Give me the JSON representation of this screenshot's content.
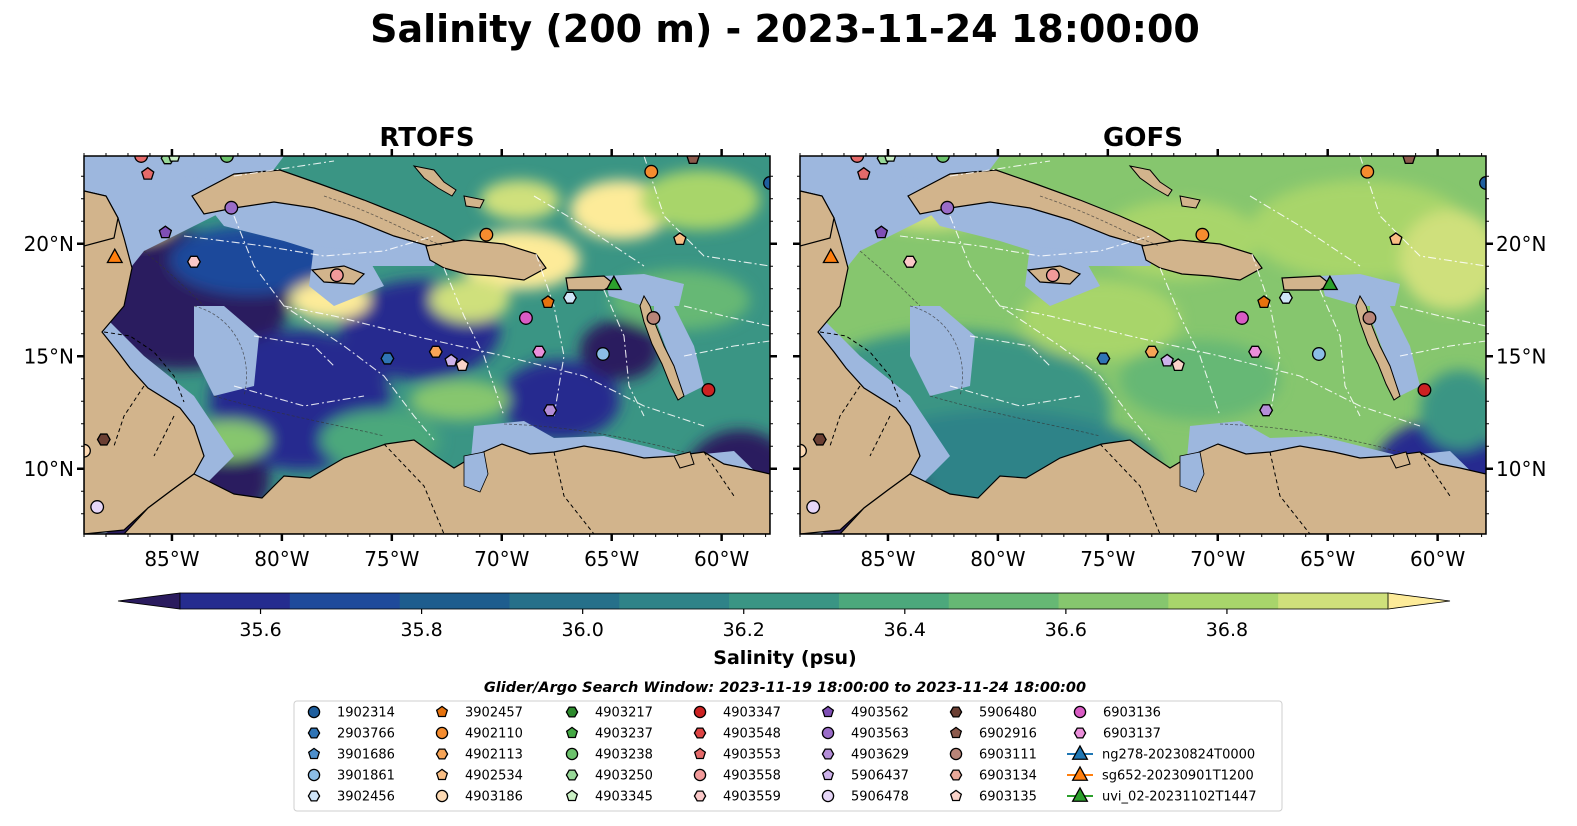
{
  "title": "Salinity (200 m) - 2023-11-24 18:00:00",
  "panels": [
    {
      "id": "rtofs",
      "title": "RTOFS"
    },
    {
      "id": "gofs",
      "title": "GOFS"
    }
  ],
  "map": {
    "lon_range": [
      -89,
      -57.8
    ],
    "lat_range": [
      7.1,
      23.9
    ],
    "lon_ticks": [
      -85,
      -80,
      -75,
      -70,
      -65,
      -60
    ],
    "lon_tick_labels": [
      "85°W",
      "80°W",
      "75°W",
      "70°W",
      "65°W",
      "60°W"
    ],
    "lat_ticks": [
      10,
      15,
      20
    ],
    "lat_tick_labels": [
      "10°N",
      "15°N",
      "20°N"
    ],
    "colors": {
      "land": "#d2b48c",
      "shelf": "#9db7de",
      "coast": "#000000",
      "border": "#000000",
      "eez": "#ffffff"
    }
  },
  "colorbar": {
    "label": "Salinity (psu)",
    "range": [
      35.5,
      37.0
    ],
    "step": 0.1,
    "extend": "both",
    "ticks": [
      35.6,
      35.8,
      36.0,
      36.2,
      36.4,
      36.6,
      36.8
    ],
    "tick_labels": [
      "35.6",
      "35.8",
      "36.0",
      "36.2",
      "36.4",
      "36.6",
      "36.8"
    ],
    "colormap": [
      "#2a1b5e",
      "#252c8f",
      "#1f4a9b",
      "#1e5d8e",
      "#26708a",
      "#2f8388",
      "#3a9584",
      "#4ca87c",
      "#66b874",
      "#86c66e",
      "#a8d56b",
      "#cfe07b",
      "#fdeb99"
    ]
  },
  "search_window": "Glider/Argo Search Window: 2023-11-19 18:00:00 to 2023-11-24 18:00:00",
  "legend": {
    "columns": [
      [
        {
          "label": "1902314",
          "marker": "circle",
          "color": "#1f5f9e"
        },
        {
          "label": "2903766",
          "marker": "hexagon",
          "color": "#2f74b5"
        },
        {
          "label": "3901686",
          "marker": "pentagon",
          "color": "#4d8fcc"
        },
        {
          "label": "3901861",
          "marker": "circle",
          "color": "#8cbde6"
        },
        {
          "label": "3902456",
          "marker": "hexagon",
          "color": "#cfe4f7"
        }
      ],
      [
        {
          "label": "3902457",
          "marker": "pentagon",
          "color": "#e6720e"
        },
        {
          "label": "4902110",
          "marker": "circle",
          "color": "#f58c2f"
        },
        {
          "label": "4902113",
          "marker": "hexagon",
          "color": "#f7a456"
        },
        {
          "label": "4902534",
          "marker": "pentagon",
          "color": "#f9be84"
        },
        {
          "label": "4903186",
          "marker": "circle",
          "color": "#fcd9b3"
        }
      ],
      [
        {
          "label": "4903217",
          "marker": "hexagon",
          "color": "#2c8a2c"
        },
        {
          "label": "4903237",
          "marker": "pentagon",
          "color": "#44a844"
        },
        {
          "label": "4903238",
          "marker": "circle",
          "color": "#6cc26c"
        },
        {
          "label": "4903250",
          "marker": "hexagon",
          "color": "#98d898"
        },
        {
          "label": "4903345",
          "marker": "pentagon",
          "color": "#caf0c4"
        }
      ],
      [
        {
          "label": "4903347",
          "marker": "circle",
          "color": "#cc2222"
        },
        {
          "label": "4903548",
          "marker": "hexagon",
          "color": "#dd4444"
        },
        {
          "label": "4903553",
          "marker": "pentagon",
          "color": "#e56a6a"
        },
        {
          "label": "4903558",
          "marker": "circle",
          "color": "#f29a9a"
        },
        {
          "label": "4903559",
          "marker": "hexagon",
          "color": "#fac8c8"
        }
      ],
      [
        {
          "label": "4903562",
          "marker": "pentagon",
          "color": "#7f4fb5"
        },
        {
          "label": "4903563",
          "marker": "circle",
          "color": "#9a6cc8"
        },
        {
          "label": "4903629",
          "marker": "hexagon",
          "color": "#b48ed8"
        },
        {
          "label": "5906437",
          "marker": "pentagon",
          "color": "#cdb2ea"
        },
        {
          "label": "5906478",
          "marker": "circle",
          "color": "#e6d6f7"
        }
      ],
      [
        {
          "label": "5906480",
          "marker": "hexagon",
          "color": "#6b3f33"
        },
        {
          "label": "6902916",
          "marker": "pentagon",
          "color": "#8c5a4c"
        },
        {
          "label": "6903111",
          "marker": "circle",
          "color": "#b98578"
        },
        {
          "label": "6903134",
          "marker": "hexagon",
          "color": "#eaa99a"
        },
        {
          "label": "6903135",
          "marker": "pentagon",
          "color": "#f9d2c8"
        }
      ],
      [
        {
          "label": "6903136",
          "marker": "circle",
          "color": "#d95bc4"
        },
        {
          "label": "6903137",
          "marker": "hexagon",
          "color": "#eb8fdb"
        },
        {
          "label": "ng278-20230824T0000",
          "marker": "triangle-line",
          "color": "#1f77b4"
        },
        {
          "label": "sg652-20230901T1200",
          "marker": "triangle-line",
          "color": "#ff7f0e"
        },
        {
          "label": "uvi_02-20231102T1447",
          "marker": "triangle-line",
          "color": "#2ca02c"
        }
      ]
    ]
  },
  "observations": [
    {
      "lon": -82.3,
      "lat": 21.6,
      "marker": "circle",
      "color": "#9a6cc8"
    },
    {
      "lon": -85.3,
      "lat": 20.5,
      "marker": "pentagon",
      "color": "#7f4fb5"
    },
    {
      "lon": -84.0,
      "lat": 19.2,
      "marker": "hexagon",
      "color": "#fac8c8"
    },
    {
      "lon": -86.1,
      "lat": 23.1,
      "marker": "pentagon",
      "color": "#e56a6a"
    },
    {
      "lon": -86.4,
      "lat": 23.9,
      "marker": "circle",
      "color": "#e56a6a"
    },
    {
      "lon": -82.5,
      "lat": 23.9,
      "marker": "circle",
      "color": "#6cc26c"
    },
    {
      "lon": -77.5,
      "lat": 18.6,
      "marker": "circle",
      "color": "#f29a9a"
    },
    {
      "lon": -75.2,
      "lat": 14.9,
      "marker": "hexagon",
      "color": "#2f74b5"
    },
    {
      "lon": -73.0,
      "lat": 15.2,
      "marker": "hexagon",
      "color": "#f7a456"
    },
    {
      "lon": -72.3,
      "lat": 14.8,
      "marker": "pentagon",
      "color": "#cdb2ea"
    },
    {
      "lon": -71.8,
      "lat": 14.6,
      "marker": "pentagon",
      "color": "#f9d2c8"
    },
    {
      "lon": -70.7,
      "lat": 20.4,
      "marker": "circle",
      "color": "#f58c2f"
    },
    {
      "lon": -67.9,
      "lat": 17.4,
      "marker": "pentagon",
      "color": "#e6720e"
    },
    {
      "lon": -66.9,
      "lat": 17.6,
      "marker": "hexagon",
      "color": "#cfe4f7"
    },
    {
      "lon": -68.9,
      "lat": 16.7,
      "marker": "circle",
      "color": "#d95bc4"
    },
    {
      "lon": -68.3,
      "lat": 15.2,
      "marker": "hexagon",
      "color": "#eb8fdb"
    },
    {
      "lon": -67.8,
      "lat": 12.6,
      "marker": "hexagon",
      "color": "#b48ed8"
    },
    {
      "lon": -65.4,
      "lat": 15.1,
      "marker": "circle",
      "color": "#8cbde6"
    },
    {
      "lon": -63.1,
      "lat": 16.7,
      "marker": "circle",
      "color": "#b98578"
    },
    {
      "lon": -63.2,
      "lat": 23.2,
      "marker": "circle",
      "color": "#f58c2f"
    },
    {
      "lon": -61.3,
      "lat": 23.8,
      "marker": "pentagon",
      "color": "#8c5a4c"
    },
    {
      "lon": -61.9,
      "lat": 20.2,
      "marker": "pentagon",
      "color": "#f9be84"
    },
    {
      "lon": -60.6,
      "lat": 13.5,
      "marker": "circle",
      "color": "#cc2222"
    },
    {
      "lon": -57.8,
      "lat": 22.7,
      "marker": "circle",
      "color": "#1f5f9e"
    },
    {
      "lon": -88.1,
      "lat": 11.3,
      "marker": "hexagon",
      "color": "#6b3f33"
    },
    {
      "lon": -89.0,
      "lat": 10.8,
      "marker": "circle",
      "color": "#fcd9b3"
    },
    {
      "lon": -88.4,
      "lat": 8.3,
      "marker": "circle",
      "color": "#e6d6f7"
    },
    {
      "lon": -85.2,
      "lat": 23.8,
      "marker": "hexagon",
      "color": "#98d898"
    },
    {
      "lon": -84.9,
      "lat": 23.9,
      "marker": "pentagon",
      "color": "#caf0c4"
    },
    {
      "lon": -87.6,
      "lat": 19.4,
      "marker": "triangle",
      "color": "#ff7f0e"
    },
    {
      "lon": -64.9,
      "lat": 18.2,
      "marker": "triangle",
      "color": "#2ca02c"
    }
  ]
}
